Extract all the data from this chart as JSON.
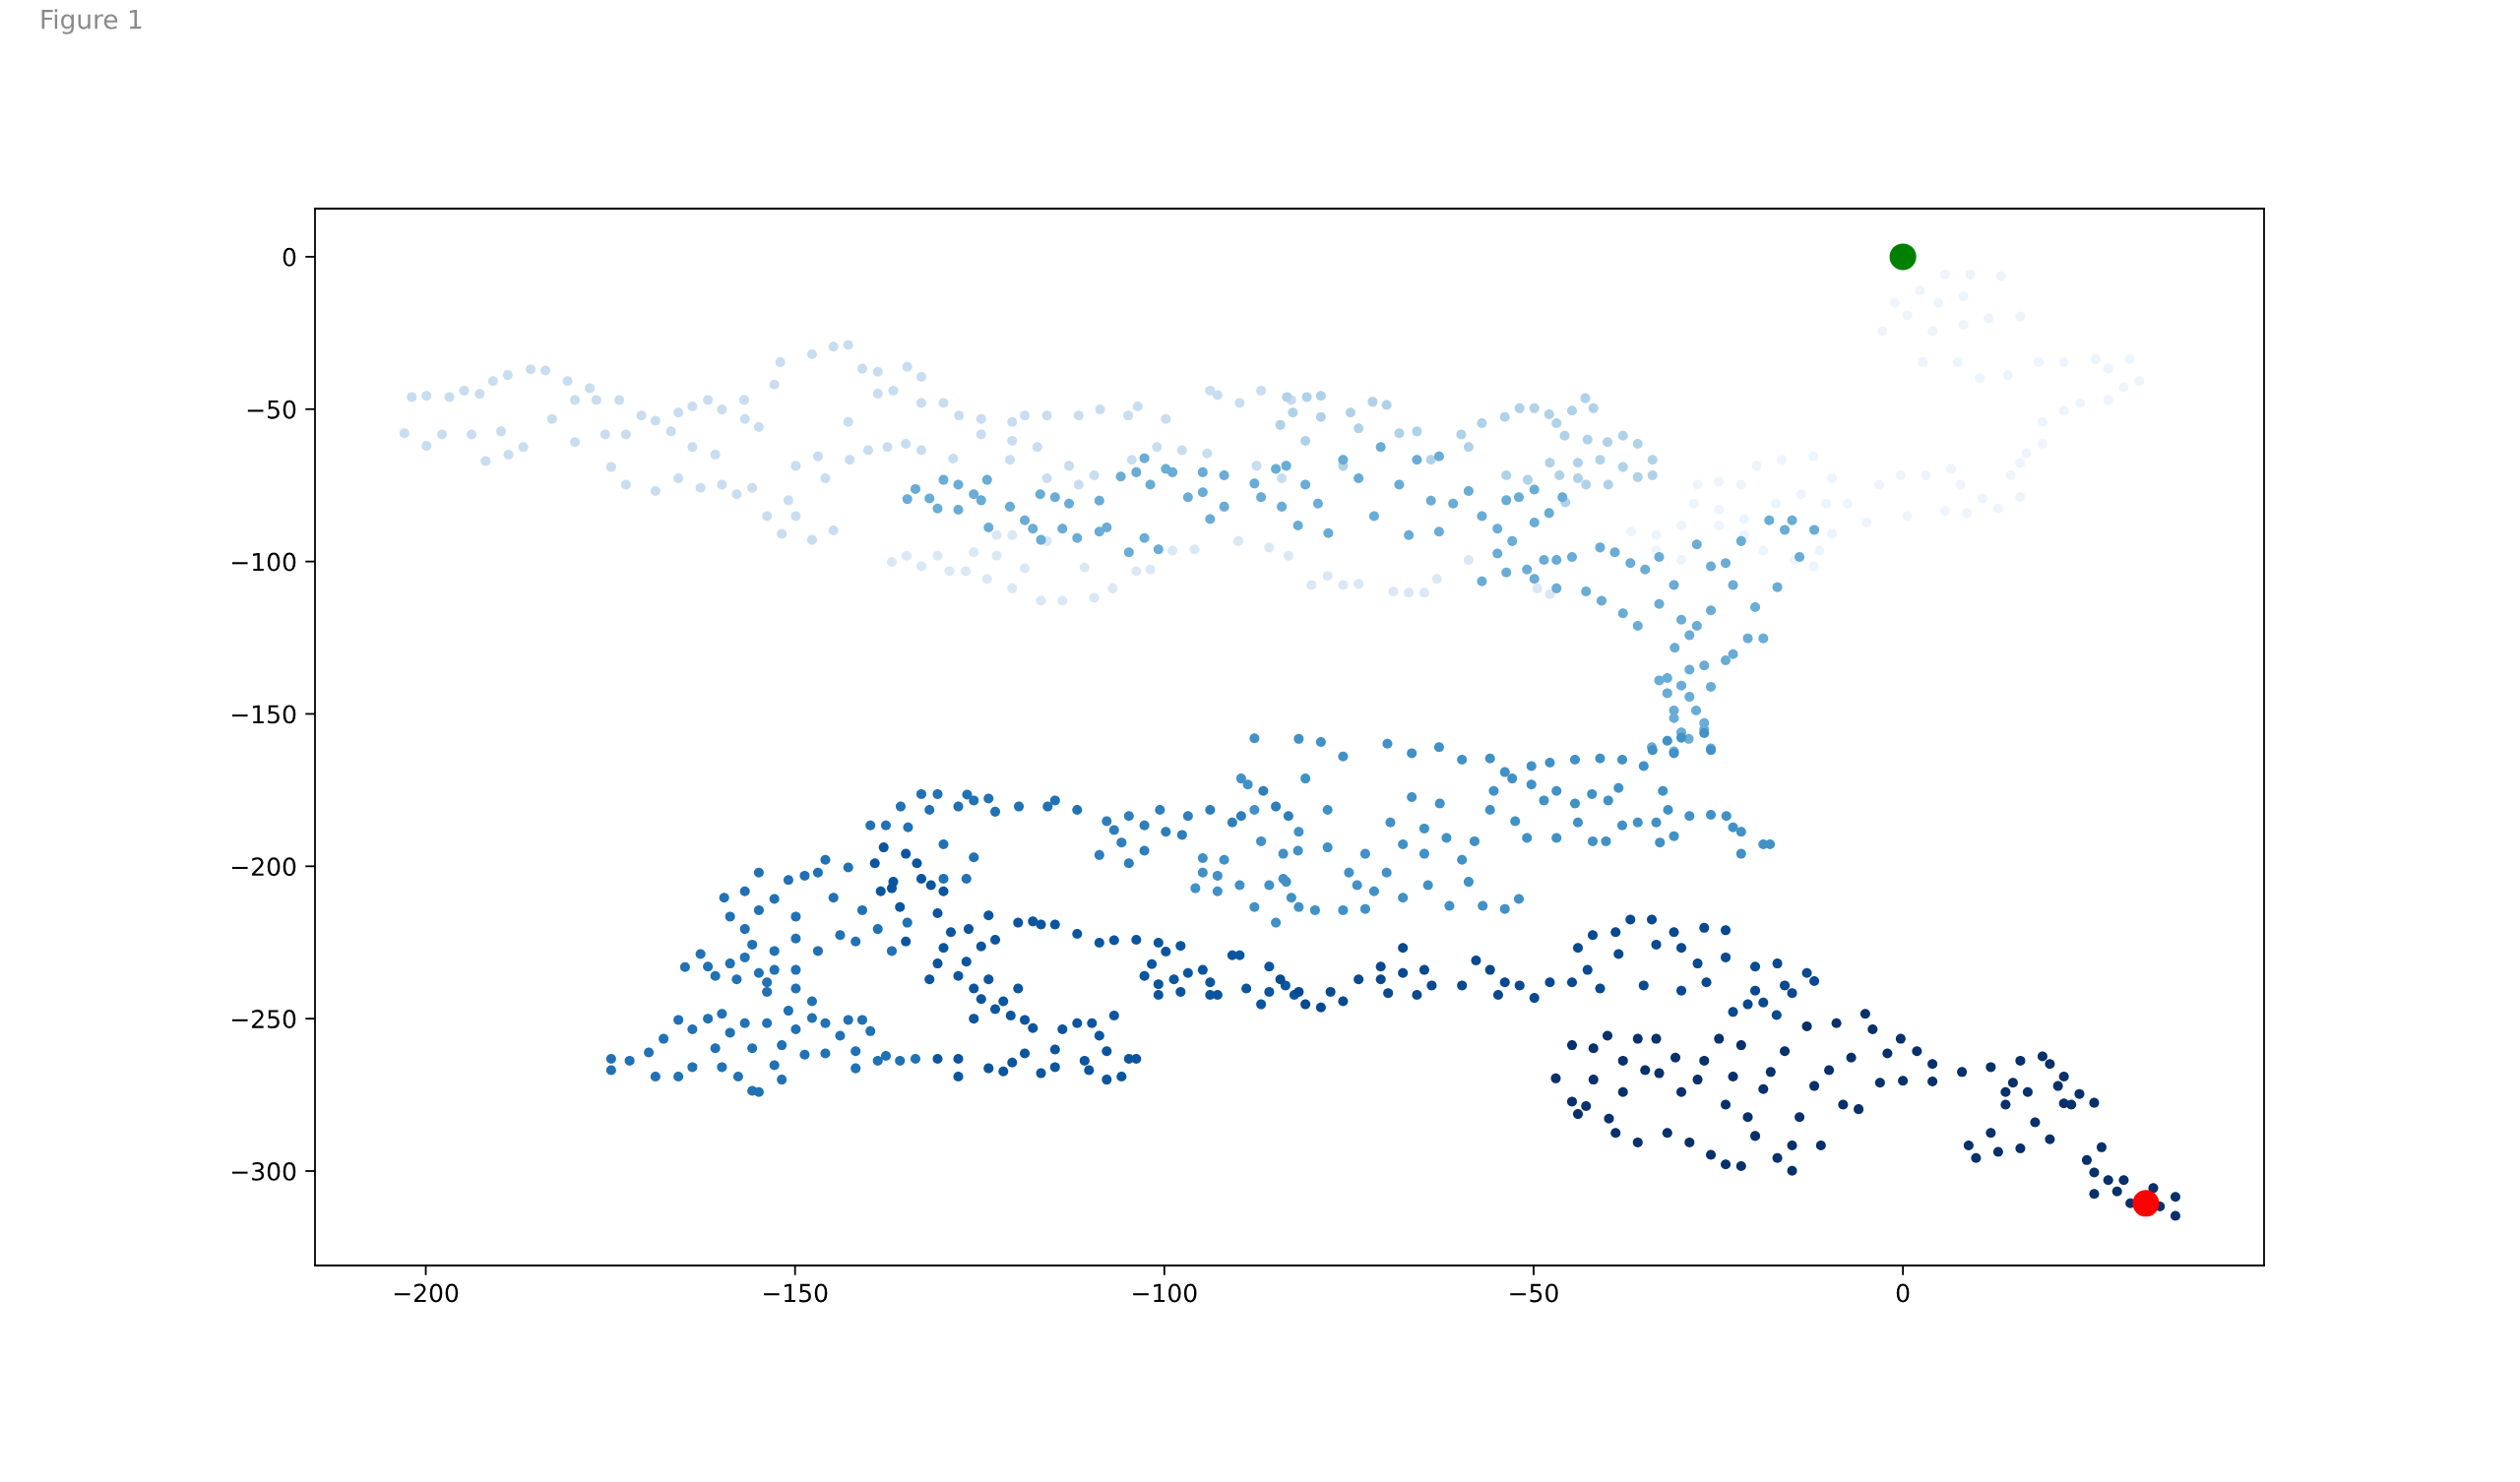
{
  "chart_data": {
    "type": "scatter",
    "annotations": [
      "Figure 1"
    ],
    "marker": "circle",
    "xlim": [
      -215.0,
      48.9
    ],
    "ylim": [
      -331.0,
      15.8
    ],
    "xticks": [
      {
        "value": -200,
        "label": "−200"
      },
      {
        "value": -150,
        "label": "−150"
      },
      {
        "value": -100,
        "label": "−100"
      },
      {
        "value": -50,
        "label": "−50"
      },
      0
    ],
    "yticks": [
      0,
      {
        "value": -50,
        "label": "−50"
      },
      {
        "value": -100,
        "label": "−100"
      },
      {
        "value": -150,
        "label": "−150"
      },
      {
        "value": -200,
        "label": "−200"
      },
      {
        "value": -250,
        "label": "−250"
      },
      {
        "value": -300,
        "label": "−300"
      }
    ],
    "series": [
      {
        "color": "#edf4fc",
        "x": [
          5.7,
          9.1,
          13.3,
          2.3,
          4.8,
          8.2,
          -1.1,
          0.6,
          -2.8,
          4.0,
          8.2,
          11.6,
          15.9,
          2.7,
          7.4,
          10.4,
          14.2,
          18.4,
          21.8,
          26.1,
          27.8,
          30.7,
          32.0,
          29.9,
          27.8,
          24.0,
          21.8,
          18.9,
          18.9,
          16.7,
          15.9,
          14.6,
          15.9,
          12.9,
          10.8,
          8.7,
          5.7,
          7.8,
          3.1,
          6.5,
          -0.3,
          -3.2,
          0.6,
          -4.9,
          -7.5,
          -9.6,
          -12.1,
          -16.4,
          -19.8,
          -21.9,
          -24.9,
          -27.8,
          -28.3,
          -24.9,
          -21.5,
          -17.2,
          -13.8,
          -10.4,
          -9.6,
          -12.1,
          -11.3,
          -14.7,
          -18.9,
          -21.5,
          -24.9,
          -30.0,
          -33.4,
          -36.8,
          -33.4,
          -30.0
        ],
        "values": [
          -5.8,
          -5.8,
          -6.4,
          -11.0,
          -15.1,
          -13.0,
          -15.1,
          -19.2,
          -24.4,
          -24.4,
          -22.3,
          -20.2,
          -19.6,
          -34.6,
          -34.6,
          -39.8,
          -38.8,
          -34.6,
          -34.6,
          -33.6,
          -36.7,
          -33.6,
          -40.8,
          -42.9,
          -47.0,
          -48.0,
          -50.5,
          -54.2,
          -61.4,
          -64.5,
          -67.6,
          -71.7,
          -78.9,
          -82.6,
          -79.3,
          -84.1,
          -83.4,
          -74.8,
          -71.7,
          -69.6,
          -71.7,
          -74.8,
          -85.1,
          -87.2,
          -81.0,
          -72.7,
          -65.5,
          -66.6,
          -68.6,
          -74.8,
          -73.8,
          -74.8,
          -81.0,
          -83.0,
          -86.1,
          -81.0,
          -77.9,
          -81.0,
          -90.9,
          -101.6,
          -96.4,
          -99.5,
          -96.4,
          -91.3,
          -88.2,
          -88.2,
          -91.3,
          -90.2,
          -96.4,
          -99.5
        ]
      },
      {
        "color": "#dae8f5",
        "x": [
          -47.8,
          -49.5,
          -58.8,
          -63.1,
          -64.8,
          -66.9,
          -69.0,
          -73.7,
          -75.8,
          -77.9,
          -80.1,
          -83.2,
          -85.8,
          -90.0,
          -95.9,
          -98.9,
          -101.9,
          -103.8,
          -107.0,
          -109.5,
          -110.8,
          -113.8,
          -115.9,
          -116.7,
          -118.9,
          -120.6,
          -120.6,
          -122.7,
          -122.7,
          -124.0,
          -125.8,
          -126.9,
          -129.1,
          -130.7,
          -132.9,
          -134.9,
          -136.9
        ],
        "values": [
          -110.8,
          -108.8,
          -99.5,
          -105.7,
          -110.2,
          -110.2,
          -109.8,
          -107.3,
          -107.7,
          -104.7,
          -107.7,
          -98.1,
          -95.4,
          -93.3,
          -96.0,
          -96.4,
          -102.6,
          -103.2,
          -108.8,
          -111.9,
          -102.0,
          -112.9,
          -93.3,
          -112.9,
          -102.2,
          -108.8,
          -91.3,
          -98.1,
          -91.3,
          -105.7,
          -97.0,
          -103.2,
          -103.2,
          -98.1,
          -101.6,
          -98.1,
          -100.1
        ]
      },
      {
        "color": "#c9ddf0",
        "x": [
          -202.9,
          -201.9,
          -199.9,
          -199.9,
          -197.8,
          -196.8,
          -194.8,
          -193.8,
          -192.7,
          -191.9,
          -190.9,
          -189.8,
          -188.9,
          -188.8,
          -186.8,
          -185.8,
          -183.8,
          -182.9,
          -180.8,
          -179.8,
          -179.8,
          -177.8,
          -176.9,
          -175.7,
          -174.9,
          -172.9,
          -173.8,
          -172.9,
          -170.8,
          -168.9,
          -166.8,
          -165.8,
          -168.9,
          -163.9,
          -163.9,
          -161.8,
          -160.8,
          -159.9,
          -156.9,
          -156.8,
          -154.9,
          -165.8,
          -162.8,
          -159.9,
          -157.9,
          -155.8,
          -153.8,
          -150.9,
          -151.8,
          -149.9,
          -147.7,
          -144.8,
          -145.9,
          -142.8,
          -152.8,
          -152.0,
          -147.7,
          -144.8,
          -142.8,
          -140.9,
          -138.8,
          -138.8,
          -136.7,
          -134.8,
          -132.9,
          -132.9,
          -129.9,
          -127.8,
          -124.8,
          -120.6,
          -118.9,
          -115.9,
          -111.6,
          -108.7,
          -104.9,
          -103.6,
          -99.8,
          -93.8,
          -92.8,
          -89.8,
          -86.9,
          -82.8,
          -142.6,
          -140.1,
          -137.5,
          -135.0,
          -132.9,
          -124.8,
          -120.6,
          -117.2,
          -112.9,
          -109.5,
          -104.4,
          -101.0,
          -97.6,
          -94.2,
          -87.5,
          -84.1,
          -149.9,
          -146.9,
          -128.6,
          -115.9,
          -111.6,
          -120.9
        ],
        "values": [
          -57.9,
          -46.0,
          -45.6,
          -62.0,
          -58.3,
          -46.0,
          -43.9,
          -58.3,
          -45.0,
          -67.0,
          -40.8,
          -57.3,
          -38.8,
          -64.9,
          -62.4,
          -36.9,
          -37.3,
          -53.2,
          -40.8,
          -47.0,
          -60.8,
          -43.1,
          -47.0,
          -58.3,
          -69.0,
          -74.8,
          -47.0,
          -58.3,
          -52.1,
          -53.8,
          -57.3,
          -51.1,
          -76.9,
          -49.1,
          -62.4,
          -47.0,
          -64.9,
          -50.1,
          -47.0,
          -53.2,
          -55.9,
          -72.7,
          -75.8,
          -74.8,
          -77.9,
          -75.8,
          -85.1,
          -79.9,
          -90.9,
          -85.1,
          -92.9,
          -89.8,
          -72.7,
          -54.2,
          -41.9,
          -34.6,
          -32.0,
          -29.5,
          -28.9,
          -36.7,
          -37.7,
          -44.9,
          -43.9,
          -36.1,
          -39.4,
          -48.0,
          -48.0,
          -52.1,
          -53.2,
          -54.2,
          -52.1,
          -52.1,
          -52.1,
          -50.1,
          -52.1,
          -49.1,
          -53.2,
          -43.9,
          -45.4,
          -48.0,
          -43.9,
          -47.0,
          -66.6,
          -63.5,
          -62.4,
          -61.4,
          -63.5,
          -58.3,
          -60.4,
          -62.4,
          -68.6,
          -71.7,
          -66.6,
          -62.4,
          -63.5,
          -64.5,
          -68.6,
          -72.7,
          -68.6,
          -65.5,
          -66.2,
          -72.7,
          -74.8,
          -66.6
        ]
      },
      {
        "color": "#b0d2e8",
        "x": [
          -83.4,
          -80.7,
          -78.8,
          -82.6,
          -78.8,
          -71.8,
          -69.9,
          -74.8,
          -73.7,
          -68.2,
          -65.8,
          -59.8,
          -58.8,
          -57.0,
          -53.9,
          -51.9,
          -49.9,
          -47.9,
          -46.9,
          -45.8,
          -44.8,
          -43.0,
          -41.9,
          -42.7,
          -40.0,
          -37.9,
          -35.9,
          -33.9,
          -33.9,
          -35.9,
          -37.9,
          -41.0,
          -44.0,
          -47.8,
          -50.8,
          -53.7,
          -63.9,
          -75.8,
          -80.9,
          -84.3,
          -46.5,
          -44.0,
          -45.7,
          -42.9,
          -39.9
        ],
        "values": [
          -46.0,
          -46.0,
          -45.6,
          -51.1,
          -52.6,
          -47.6,
          -48.6,
          -51.1,
          -56.3,
          -57.9,
          -57.3,
          -58.3,
          -62.4,
          -54.6,
          -52.6,
          -49.7,
          -49.7,
          -51.7,
          -54.6,
          -58.7,
          -50.5,
          -46.4,
          -49.7,
          -60.0,
          -60.8,
          -58.7,
          -61.4,
          -66.6,
          -71.7,
          -72.3,
          -69.0,
          -66.6,
          -67.6,
          -67.6,
          -73.2,
          -71.7,
          -66.6,
          -68.6,
          -60.4,
          -55.2,
          -71.7,
          -72.7,
          -80.6,
          -74.8,
          -74.8
        ]
      },
      {
        "color": "#69acd5",
        "x": [
          -134.8,
          -133.7,
          -131.8,
          -129.9,
          -127.9,
          -127.9,
          -130.7,
          -125.8,
          -124.8,
          -124.0,
          -123.8,
          -120.9,
          -118.9,
          -117.8,
          -116.8,
          -116.7,
          -114.8,
          -113.8,
          -112.9,
          -111.8,
          -108.8,
          -108.8,
          -107.8,
          -105.9,
          -104.8,
          -103.8,
          -102.7,
          -102.7,
          -101.9,
          -100.8,
          -99.8,
          -98.9,
          -96.8,
          -94.8,
          -94.8,
          -93.8,
          -91.9,
          -91.9,
          -87.8,
          -86.9,
          -84.9,
          -84.1,
          -81.9,
          -83.5,
          -80.9,
          -79.2,
          -77.8,
          -75.8,
          -73.7,
          -71.6,
          -70.7,
          -68.2,
          -66.9,
          -65.8,
          -63.9,
          -62.8,
          -62.8,
          -60.9,
          -58.8,
          -57.0,
          -54.9,
          -53.7,
          -52.0,
          -49.9,
          -49.9,
          -47.9,
          -46.1,
          -57.0,
          -54.9,
          -53.7,
          -50.9,
          -49.9,
          -52.9,
          -48.6,
          -46.9,
          -46.9,
          -44.8,
          -42.9,
          -41.0,
          -40.8,
          -39.0,
          -37.9,
          -36.9,
          -35.9,
          -34.9,
          -33.0,
          -33.0,
          -31.0,
          -30.0,
          -27.9,
          -27.9,
          -26.0,
          -26.0,
          -24.0,
          -23.0,
          -21.9,
          -21.0,
          -20.0,
          -18.9,
          -18.1,
          -17.0,
          -16.0,
          -15.0,
          -14.0,
          -12.0,
          -28.9,
          -30.9,
          -26.9,
          -28.9,
          -31.9,
          -33.0,
          -30.0,
          -31.9,
          -26.0,
          -28.9,
          -28.0,
          -31.0,
          -31.0,
          -26.9,
          -26.9,
          -30.0,
          -29.0,
          -26.0,
          -31.0,
          -34.0,
          -24.0,
          -23.0
        ],
        "values": [
          -79.5,
          -76.2,
          -79.3,
          -73.2,
          -74.8,
          -83.0,
          -82.6,
          -77.9,
          -79.9,
          -73.2,
          -88.8,
          -82.0,
          -86.5,
          -89.2,
          -77.9,
          -92.9,
          -78.9,
          -89.2,
          -81.0,
          -92.3,
          -80.0,
          -90.2,
          -88.8,
          -72.1,
          -97.0,
          -70.7,
          -66.1,
          -92.3,
          -74.8,
          -96.0,
          -69.6,
          -70.7,
          -78.9,
          -70.7,
          -77.3,
          -86.1,
          -82.0,
          -71.7,
          -74.4,
          -78.9,
          -69.6,
          -82.0,
          -88.2,
          -68.6,
          -74.8,
          -81.0,
          -90.7,
          -66.6,
          -72.7,
          -85.1,
          -62.4,
          -74.8,
          -91.3,
          -66.6,
          -80.0,
          -65.5,
          -90.2,
          -81.0,
          -76.9,
          -85.1,
          -89.2,
          -79.9,
          -78.9,
          -76.4,
          -87.2,
          -84.1,
          -78.9,
          -106.5,
          -97.4,
          -103.6,
          -102.6,
          -105.7,
          -93.3,
          -99.5,
          -99.5,
          -108.8,
          -98.5,
          -109.8,
          -95.4,
          -112.9,
          -97.0,
          -117.0,
          -100.5,
          -121.1,
          -102.6,
          -98.5,
          -113.9,
          -107.7,
          -119.1,
          -94.4,
          -121.1,
          -101.6,
          -116.0,
          -100.5,
          -107.7,
          -93.3,
          -125.2,
          -115.0,
          -125.2,
          -86.5,
          -108.4,
          -89.6,
          -86.5,
          -98.5,
          -89.6,
          -124.2,
          -128.3,
          -134.1,
          -135.5,
          -138.2,
          -139.0,
          -140.7,
          -143.2,
          -141.1,
          -144.4,
          -148.9,
          -148.9,
          -151.4,
          -153.0,
          -155.1,
          -156.1,
          -158.2,
          -161.3,
          -162.3,
          -160.9,
          -132.4,
          -130.4
        ]
      },
      {
        "color": "#4191c6",
        "x": [
          -81.8,
          -78.8,
          -75.8,
          -69.8,
          -66.5,
          -62.8,
          -59.7,
          -55.9,
          -53.9,
          -50.3,
          -47.8,
          -44.4,
          -41.0,
          -38.0,
          -35.1,
          -33.9,
          -31.9,
          -30.0,
          -26.9,
          -26.0,
          -31.0,
          -32.5,
          -31.8,
          -33.4,
          -31.0,
          -32.9,
          -28.9,
          -26.0,
          -23.9,
          -23.0,
          -21.9,
          -21.9,
          -18.9,
          -18.0,
          -35.9,
          -38.0,
          -40.2,
          -42.0,
          -44.0,
          -46.9,
          -46.9,
          -50.3,
          -52.9,
          -55.9,
          -58.0,
          -59.7,
          -58.8,
          -61.8,
          -64.8,
          -67.7,
          -69.9,
          -71.6,
          -73.9,
          -75.8,
          -79.6,
          -81.8,
          -83.5,
          -83.9,
          -81.8,
          -77.9,
          -77.9,
          -80.9,
          -61.4,
          -56.9,
          -53.9,
          -52.0,
          -64.3,
          -67.7,
          -72.8,
          -75.0,
          -72.8,
          -69.4,
          -66.5,
          -64.8,
          -62.7,
          -55.4,
          -52.5,
          -50.9,
          -48.6,
          -44.4,
          -42.1,
          -39.9,
          -38.5,
          -95.8,
          -94.8,
          -94.8,
          -92.8,
          -92.8,
          -91.9,
          -89.8,
          -89.6,
          -88.7,
          -87.8,
          -87.8,
          -86.9,
          -85.8,
          -84.9,
          -83.9,
          -82.8,
          -81.9,
          -87.8
        ],
        "values": [
          -158.2,
          -159.2,
          -164.0,
          -159.8,
          -162.9,
          -160.9,
          -165.0,
          -164.6,
          -169.1,
          -167.1,
          -166.0,
          -165.0,
          -164.6,
          -165.0,
          -167.1,
          -161.9,
          -158.8,
          -157.8,
          -156.3,
          -161.9,
          -162.9,
          -175.3,
          -181.5,
          -185.6,
          -190.1,
          -192.2,
          -183.5,
          -183.1,
          -183.5,
          -187.2,
          -188.7,
          -195.9,
          -192.8,
          -192.8,
          -185.6,
          -186.6,
          -191.8,
          -191.8,
          -185.6,
          -190.7,
          -175.3,
          -173.2,
          -171.2,
          -181.5,
          -191.8,
          -197.9,
          -205.1,
          -190.7,
          -195.9,
          -192.8,
          -202.1,
          -208.2,
          -206.2,
          -214.4,
          -214.4,
          -213.4,
          -205.1,
          -195.9,
          -188.7,
          -193.8,
          -181.5,
          -171.2,
          -213.0,
          -213.0,
          -214.0,
          -210.7,
          -206.2,
          -210.3,
          -214.0,
          -202.1,
          -195.9,
          -185.6,
          -177.3,
          -187.6,
          -179.4,
          -175.3,
          -185.2,
          -190.7,
          -178.4,
          -179.4,
          -176.3,
          -178.4,
          -174.3,
          -207.2,
          -202.1,
          -197.3,
          -203.1,
          -208.2,
          -197.9,
          -206.2,
          -171.2,
          -173.2,
          -181.5,
          -213.4,
          -191.8,
          -206.2,
          -218.5,
          -204.1,
          -210.3,
          -194.9,
          -158.0
        ]
      },
      {
        "color": "#2e7ebc",
        "x": [
          -107.8,
          -108.8,
          -106.8,
          -105.8,
          -104.8,
          -104.8,
          -102.7,
          -102.7,
          -100.6,
          -99.8,
          -97.6,
          -96.8,
          -93.8,
          -90.8,
          -89.6,
          -86.6,
          -84.9,
          -83.2
        ],
        "values": [
          -185.2,
          -196.3,
          -188.1,
          -192.2,
          -183.5,
          -199.0,
          -194.9,
          -186.6,
          -181.5,
          -188.7,
          -189.7,
          -183.5,
          -181.5,
          -185.6,
          -183.5,
          -175.3,
          -180.4,
          -183.5
        ]
      },
      {
        "color": "#2171b5",
        "x": [
          -159.6,
          -158.8,
          -156.8,
          -156.8,
          -155.8,
          -154.9,
          -154.9,
          -152.8,
          -152.8,
          -150.9,
          -149.9,
          -149.9,
          -148.7,
          -146.9,
          -146.9,
          -145.9,
          -144.8,
          -143.9,
          -142.8,
          -141.8,
          -140.9,
          -139.8,
          -138.8,
          -137.7,
          -136.9,
          -135.7,
          -134.8,
          -134.7,
          -132.9,
          -131.8,
          -130.7,
          -129.9,
          -127.9,
          -126.7,
          -125.8,
          -123.8,
          -122.9,
          -119.7,
          -115.8,
          -114.8,
          -111.8,
          -126.8,
          -125.8,
          -129.9,
          -174.9,
          -174.9,
          -172.4,
          -169.8,
          -168.9,
          -167.8,
          -165.8,
          -165.8,
          -163.9,
          -163.9,
          -161.8,
          -160.8,
          -159.9,
          -159.9,
          -158.8,
          -157.7,
          -156.8,
          -155.8,
          -155.8,
          -154.9,
          -153.8,
          -152.8,
          -151.8,
          -151.8,
          -150.9,
          -149.9,
          -148.7,
          -147.7,
          -147.7,
          -145.9,
          -145.9,
          -143.9,
          -142.8,
          -141.8,
          -141.8,
          -140.9,
          -139.8,
          -138.8,
          -137.7,
          -135.8,
          -133.7,
          -164.9,
          -162.8,
          -161.8,
          -160.8,
          -158.8,
          -157.9,
          -156.8,
          -154.9,
          -153.8,
          -153.8,
          -152.8,
          -149.9,
          -149.9
        ],
        "values": [
          -210.3,
          -216.5,
          -208.2,
          -220.6,
          -225.7,
          -202.1,
          -214.4,
          -210.7,
          -227.8,
          -204.5,
          -216.5,
          -223.7,
          -203.1,
          -202.1,
          -227.8,
          -197.9,
          -210.3,
          -222.6,
          -200.4,
          -224.7,
          -214.4,
          -186.6,
          -220.6,
          -186.6,
          -227.8,
          -180.4,
          -218.5,
          -187.2,
          -176.3,
          -181.5,
          -176.3,
          -192.8,
          -180.4,
          -176.5,
          -178.4,
          -177.8,
          -182.1,
          -180.4,
          -180.4,
          -178.4,
          -181.5,
          -204.1,
          -197.1,
          -204.1,
          -263.2,
          -266.9,
          -263.8,
          -261.1,
          -269.0,
          -256.6,
          -250.4,
          -269.0,
          -253.5,
          -265.9,
          -250.0,
          -259.7,
          -248.4,
          -265.9,
          -254.6,
          -269.0,
          -251.5,
          -259.7,
          -273.7,
          -274.1,
          -251.5,
          -265.3,
          -270.0,
          -258.7,
          -247.4,
          -253.5,
          -261.8,
          -244.3,
          -249.8,
          -251.5,
          -261.4,
          -255.6,
          -250.4,
          -260.7,
          -266.3,
          -250.4,
          -254.1,
          -263.8,
          -262.2,
          -263.8,
          -263.2,
          -233.1,
          -228.8,
          -232.9,
          -236.0,
          -231.9,
          -237.1,
          -229.9,
          -235.0,
          -238.1,
          -241.2,
          -234.0,
          -234.0,
          -240.1
        ]
      },
      {
        "color": "#0b559f",
        "x": [
          -130.7,
          -127.9,
          -127.9,
          -125.8,
          -123.8,
          -121.8,
          -120.6,
          -118.9,
          -116.7,
          -114.8,
          -114.8,
          -113.8,
          -111.8,
          -110.8,
          -109.8,
          -108.8,
          -107.8,
          -107.8,
          -106.8,
          -105.8,
          -104.8,
          -103.8,
          -110.2,
          -131.8,
          -130.7,
          -130.7,
          -129.9,
          -128.9,
          -127.9,
          -126.8,
          -126.5,
          -125.8,
          -124.8,
          -124.8,
          -123.8,
          -123.8,
          -122.9,
          -122.9,
          -121.8,
          -120.8,
          -119.8,
          -119.8,
          -117.8,
          -118.9,
          -117.8,
          -116.7,
          -114.8,
          -111.8,
          -108.8,
          -106.8,
          -103.8,
          -100.8,
          -99.8,
          -97.8,
          -102.7,
          -101.7,
          -100.8,
          -100.8,
          -98.7,
          -97.8,
          -96.8,
          -94.8,
          -93.8,
          -93.8,
          -92.8,
          -90.8,
          -89.8,
          -88.9,
          -86.9,
          -85.8,
          -85.8,
          -83.6,
          -82.4,
          -139.2,
          -138.0,
          -136.7,
          -135.0,
          -133.5,
          -132.9,
          -131.6,
          -138.4,
          -135.8,
          -135.0,
          -136.9,
          -129.9
        ],
        "values": [
          -263.2,
          -263.2,
          -269.0,
          -250.0,
          -266.3,
          -267.3,
          -264.4,
          -261.4,
          -267.9,
          -265.9,
          -260.1,
          -253.5,
          -251.5,
          -263.8,
          -251.5,
          -255.6,
          -260.7,
          -270.0,
          -249.0,
          -269.0,
          -263.2,
          -263.2,
          -266.9,
          -237.1,
          -231.9,
          -215.4,
          -226.8,
          -221.6,
          -236.0,
          -231.3,
          -220.6,
          -240.1,
          -226.3,
          -243.6,
          -216.1,
          -237.1,
          -224.1,
          -246.9,
          -244.3,
          -249.0,
          -218.5,
          -240.1,
          -218.1,
          -250.4,
          -253.1,
          -219.1,
          -219.1,
          -222.2,
          -225.1,
          -224.3,
          -224.1,
          -225.1,
          -228.0,
          -226.1,
          -236.0,
          -232.1,
          -238.7,
          -242.2,
          -237.1,
          -241.2,
          -235.0,
          -234.0,
          -238.1,
          -242.2,
          -242.2,
          -229.2,
          -229.2,
          -240.1,
          -245.3,
          -232.9,
          -241.2,
          -239.1,
          -242.2,
          -199.0,
          -193.8,
          -205.1,
          -195.9,
          -199.0,
          -204.1,
          -206.2,
          -208.2,
          -213.4,
          -224.7,
          -207.2,
          -208.2
        ]
      },
      {
        "color": "#08498f",
        "x": [
          -84.3,
          -81.8,
          -80.9,
          -78.8,
          -77.5,
          -75.8,
          -73.7,
          -70.7,
          -70.7,
          -69.7,
          -67.7,
          -67.7,
          -65.8,
          -64.8,
          -63.8,
          -59.7,
          -57.8,
          -55.9,
          -54.8,
          -53.9,
          -51.9,
          -49.9,
          -47.8,
          -44.8,
          -42.7,
          -41.0,
          -44.0,
          -42.0,
          -38.9,
          -36.9,
          -34.0,
          -31.0,
          -30.0,
          -26.9,
          -24.0,
          -27.8,
          -30.0,
          -26.6,
          -24.0,
          -20.0,
          -17.0,
          -16.0,
          -13.0,
          -12.0,
          -15.0,
          -20.0,
          -21.0,
          -18.9,
          -17.1,
          -23.0,
          -35.1,
          -38.5,
          -33.4
        ],
        "values": [
          -237.1,
          -241.2,
          -245.3,
          -246.3,
          -241.2,
          -244.3,
          -237.1,
          -232.9,
          -237.1,
          -241.6,
          -226.8,
          -235.0,
          -242.2,
          -234.0,
          -239.1,
          -239.1,
          -230.9,
          -234.0,
          -242.2,
          -238.1,
          -239.1,
          -243.2,
          -238.1,
          -238.1,
          -234.0,
          -240.1,
          -226.8,
          -222.6,
          -221.6,
          -217.5,
          -217.5,
          -221.6,
          -226.8,
          -220.2,
          -221.0,
          -231.9,
          -240.8,
          -238.1,
          -229.9,
          -232.9,
          -231.9,
          -239.1,
          -235.0,
          -237.7,
          -241.6,
          -240.8,
          -245.3,
          -244.7,
          -248.8,
          -247.8,
          -239.1,
          -228.8,
          -225.7
        ]
      },
      {
        "color": "#08306b",
        "x": [
          -47.0,
          -44.8,
          -44.8,
          -42.9,
          -44.0,
          -41.9,
          -41.9,
          -40.0,
          -39.8,
          -38.9,
          -37.9,
          -37.9,
          -35.9,
          -35.9,
          -34.9,
          -33.4,
          -33.0,
          -31.9,
          -30.8,
          -30.0,
          -28.9,
          -27.8,
          -26.9,
          -26.0,
          -24.9,
          -24.0,
          -24.0,
          -23.0,
          -21.9,
          -21.9,
          -21.0,
          -20.0,
          -18.9,
          -17.9,
          -17.0,
          -16.0,
          -15.0,
          -15.0,
          -14.0,
          -13.0,
          -12.0,
          -11.1,
          -10.0,
          -9.0,
          -8.1,
          -7.0,
          -6.0,
          -5.1,
          -4.1,
          -3.1,
          -2.1,
          -0.3,
          0.0,
          1.9,
          4.0,
          4.0,
          8.0,
          8.9,
          9.9,
          11.9,
          11.9,
          12.9,
          13.9,
          13.9,
          14.9,
          15.9,
          15.9,
          16.9,
          17.9,
          18.9,
          19.9,
          19.9,
          21.0,
          21.8,
          21.8,
          22.8,
          23.9,
          24.9,
          25.9,
          25.9,
          26.9,
          27.8,
          25.9,
          29.0,
          29.9,
          30.8,
          33.9,
          34.8,
          36.9,
          36.9
        ],
        "values": [
          -269.6,
          -258.7,
          -277.2,
          -278.7,
          -281.3,
          -270.0,
          -259.7,
          -255.6,
          -282.8,
          -287.5,
          -263.8,
          -274.1,
          -256.6,
          -290.6,
          -266.9,
          -256.6,
          -267.9,
          -287.5,
          -262.8,
          -274.1,
          -290.6,
          -270.0,
          -263.8,
          -294.7,
          -256.6,
          -278.2,
          -297.8,
          -269.0,
          -258.7,
          -298.4,
          -282.3,
          -288.5,
          -273.1,
          -267.5,
          -295.7,
          -260.7,
          -291.6,
          -299.9,
          -282.3,
          -252.5,
          -272.1,
          -291.6,
          -266.9,
          -251.5,
          -278.2,
          -262.8,
          -279.7,
          -248.4,
          -253.5,
          -271.0,
          -261.4,
          -256.6,
          -270.4,
          -260.7,
          -264.9,
          -270.6,
          -267.5,
          -291.6,
          -295.7,
          -265.9,
          -287.5,
          -293.7,
          -274.1,
          -278.2,
          -271.0,
          -263.8,
          -292.6,
          -274.1,
          -284.0,
          -262.4,
          -264.9,
          -289.6,
          -272.1,
          -269.0,
          -277.8,
          -278.2,
          -274.7,
          -296.4,
          -277.6,
          -300.5,
          -292.2,
          -303.0,
          -307.5,
          -306.7,
          -303.0,
          -310.6,
          -305.6,
          -311.6,
          -308.5,
          -314.7
        ]
      },
      {
        "color": "#008000",
        "x": [
          0
        ],
        "values": [
          0
        ]
      },
      {
        "color": "#ff0000",
        "x": [
          32.9
        ],
        "values": [
          -310.6
        ]
      }
    ]
  }
}
